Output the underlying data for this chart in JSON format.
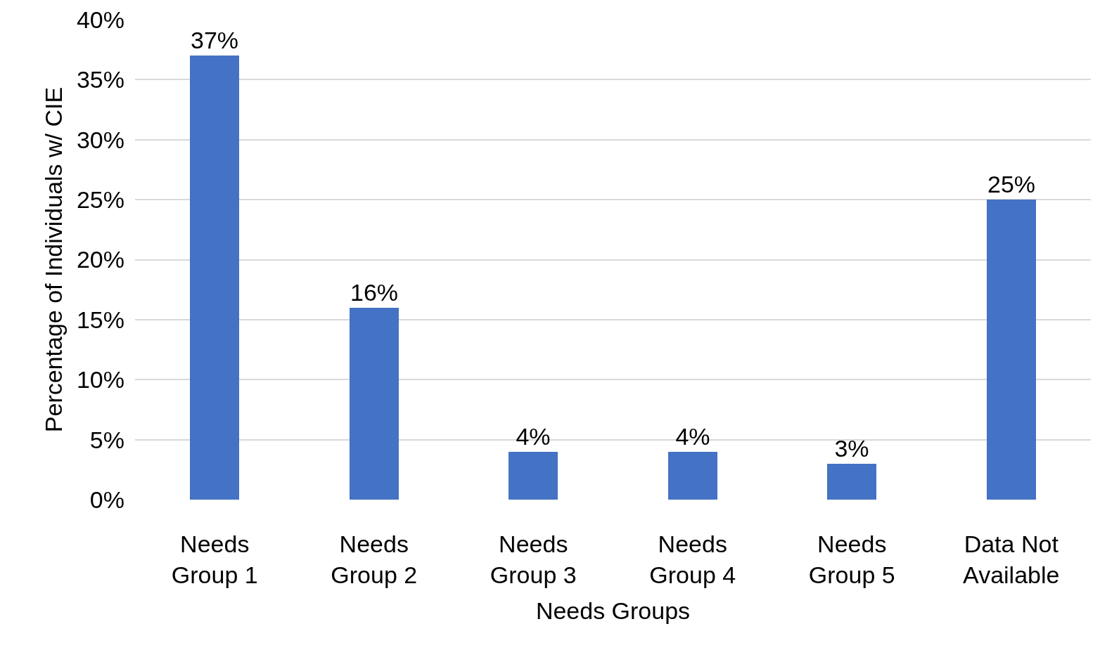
{
  "chart_data": {
    "type": "bar",
    "xlabel": "Needs Groups",
    "ylabel": "Percentage of Individuals w/ CIE",
    "categories": [
      "Needs Group 1",
      "Needs Group 2",
      "Needs Group 3",
      "Needs Group 4",
      "Needs Group 5",
      "Data Not Available"
    ],
    "values": [
      37,
      16,
      4,
      4,
      3,
      25
    ],
    "value_labels": [
      "37%",
      "16%",
      "4%",
      "4%",
      "3%",
      "25%"
    ],
    "color": "#4472c4",
    "ylim": [
      0,
      40
    ],
    "yticks": [
      {
        "value": 0,
        "label": "0%"
      },
      {
        "value": 5,
        "label": "5%"
      },
      {
        "value": 10,
        "label": "10%"
      },
      {
        "value": 15,
        "label": "15%"
      },
      {
        "value": 20,
        "label": "20%"
      },
      {
        "value": 25,
        "label": "25%"
      },
      {
        "value": 30,
        "label": "30%"
      },
      {
        "value": 35,
        "label": "35%"
      },
      {
        "value": 40,
        "label": "40%"
      }
    ],
    "grid": "y"
  }
}
